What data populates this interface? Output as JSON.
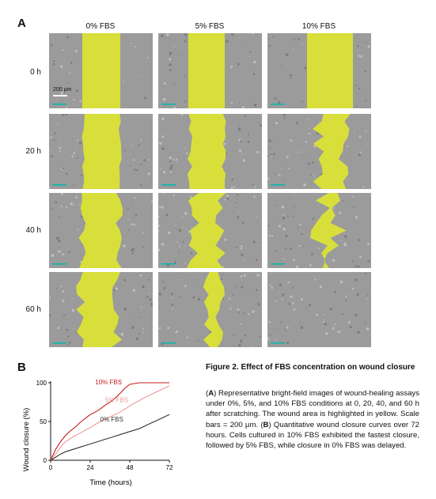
{
  "panel_a": {
    "letter": "A",
    "columns": [
      "0% FBS",
      "5% FBS",
      "10% FBS"
    ],
    "rows": [
      "0 h",
      "20 h",
      "40 h",
      "60 h"
    ],
    "scale_bar_label": "200 µm",
    "wound_color": "#d8df3a",
    "cell_background": "#9b9b9b",
    "scale_bar_color": "#00b9b0"
  },
  "panel_b": {
    "letter": "B"
  },
  "caption": {
    "title": "Figure 2. Effect of FBS concentration on wound closure",
    "letter_a": "A",
    "text_a": ") Representative bright-field images of wound-healing assays under 0%, 5%, and 10% FBS conditions at 0, 20, 40, and 60 h after scratching. The wound area is highlighted in yellow. Scale bars = 200 µm. (",
    "letter_b": "B",
    "text_b": ") Quantitative wound closure curves over 72 hours. Cells cultured in 10% FBS exhibited the fastest closure, followed by 5% FBS, while closure in 0% FBS was delayed."
  },
  "chart_data": {
    "type": "line",
    "title": "",
    "xlabel": "Time (hours)",
    "ylabel": "Wound closure (%)",
    "xlim": [
      0,
      72
    ],
    "ylim": [
      0,
      100
    ],
    "xticks": [
      0,
      24,
      48,
      72
    ],
    "yticks": [
      0,
      50,
      100
    ],
    "grid": false,
    "legend": "inline labels",
    "series": [
      {
        "name": "10% FBS",
        "color": "#c81e1e",
        "x": [
          0,
          3,
          6,
          9,
          12,
          15,
          18,
          21,
          24,
          27,
          30,
          33,
          36,
          39,
          42,
          45,
          48,
          51,
          54,
          57,
          60,
          63,
          66,
          69,
          72
        ],
        "y": [
          0,
          14,
          24,
          32,
          38,
          43,
          49,
          54,
          59,
          62,
          66,
          71,
          75,
          80,
          86,
          93,
          98,
          99,
          100,
          100,
          100,
          100,
          100,
          100,
          100
        ]
      },
      {
        "name": "5% FBS",
        "color": "#eb9a9a",
        "x": [
          0,
          3,
          6,
          9,
          12,
          15,
          18,
          21,
          24,
          27,
          30,
          33,
          36,
          39,
          42,
          45,
          48,
          51,
          54,
          57,
          60,
          63,
          66,
          69,
          72
        ],
        "y": [
          0,
          8,
          17,
          24,
          28,
          32,
          35,
          39,
          42,
          46,
          50,
          53,
          56,
          59,
          62,
          66,
          70,
          74,
          77,
          81,
          84,
          87,
          90,
          93,
          96
        ]
      },
      {
        "name": "0% FBS",
        "color": "#333333",
        "x": [
          0,
          3,
          6,
          9,
          12,
          15,
          18,
          21,
          24,
          27,
          30,
          33,
          36,
          39,
          42,
          45,
          48,
          51,
          54,
          57,
          60,
          63,
          66,
          69,
          72
        ],
        "y": [
          0,
          4,
          8,
          11,
          13,
          15,
          17,
          19,
          21,
          23,
          25,
          27,
          29,
          31,
          33,
          35,
          37,
          39,
          41,
          44,
          47,
          50,
          53,
          56,
          59
        ]
      }
    ]
  }
}
